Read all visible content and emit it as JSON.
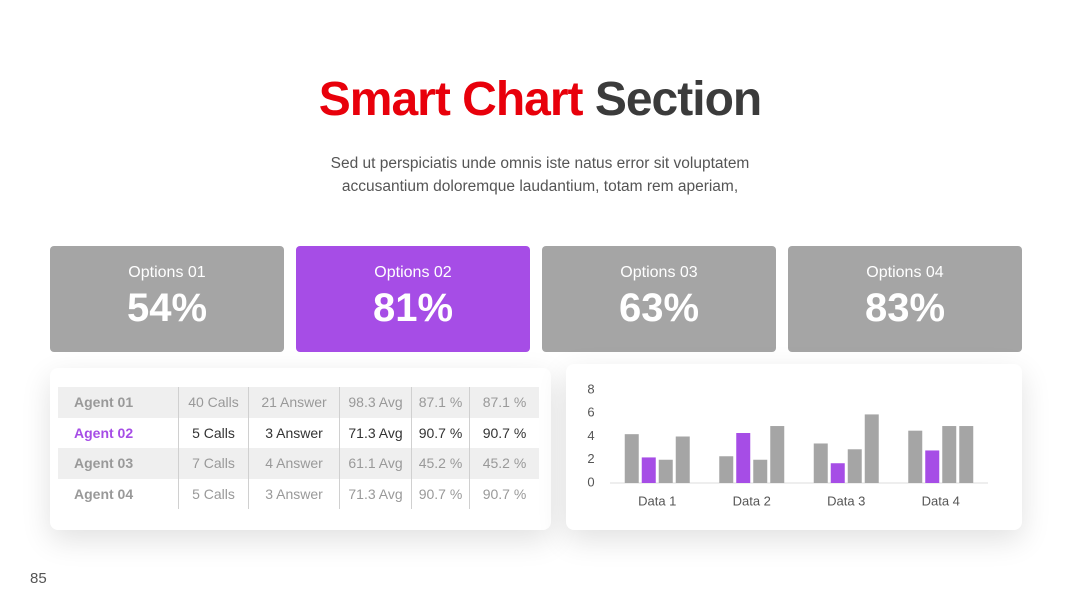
{
  "header": {
    "title_accent": "Smart Chart",
    "title_main": "Section",
    "subtitle_lines": [
      "Sed ut perspiciatis unde omnis iste natus error sit voluptatem",
      "accusantium doloremque laudantium, totam rem aperiam,"
    ]
  },
  "cards": [
    {
      "label": "Options 01",
      "value": "54%",
      "color": "#a5a5a5"
    },
    {
      "label": "Options 02",
      "value": "81%",
      "color": "#a64de6"
    },
    {
      "label": "Options 03",
      "value": "63%",
      "color": "#a5a5a5"
    },
    {
      "label": "Options 04",
      "value": "83%",
      "color": "#a5a5a5"
    }
  ],
  "table": {
    "rows": [
      [
        "Agent 01",
        "40 Calls",
        "21 Answer",
        "98.3 Avg",
        "87.1 %",
        "87.1 %"
      ],
      [
        "Agent 02",
        "5 Calls",
        "3 Answer",
        "71.3 Avg",
        "90.7 %",
        "90.7 %"
      ],
      [
        "Agent 03",
        "7 Calls",
        "4 Answer",
        "61.1 Avg",
        "45.2 %",
        "45.2 %"
      ],
      [
        "Agent 04",
        "5 Calls",
        "3 Answer",
        "71.3 Avg",
        "90.7 %",
        "90.7 %"
      ]
    ]
  },
  "chart_data": {
    "type": "bar",
    "categories": [
      "Data 1",
      "Data 2",
      "Data 3",
      "Data 4"
    ],
    "series": [
      {
        "color": "#a5a5a5",
        "values": [
          4.2,
          2.3,
          3.4,
          4.5
        ]
      },
      {
        "color": "#a64de6",
        "values": [
          2.2,
          4.3,
          1.7,
          2.8
        ]
      },
      {
        "color": "#a5a5a5",
        "values": [
          2.0,
          2.0,
          2.9,
          4.9
        ]
      },
      {
        "color": "#a5a5a5",
        "values": [
          4.0,
          4.9,
          5.9,
          4.9
        ]
      }
    ],
    "ylim": [
      0,
      8
    ],
    "yticks": [
      0,
      2,
      4,
      6,
      8
    ],
    "grid": false
  },
  "footer": {
    "page_number": "85"
  }
}
